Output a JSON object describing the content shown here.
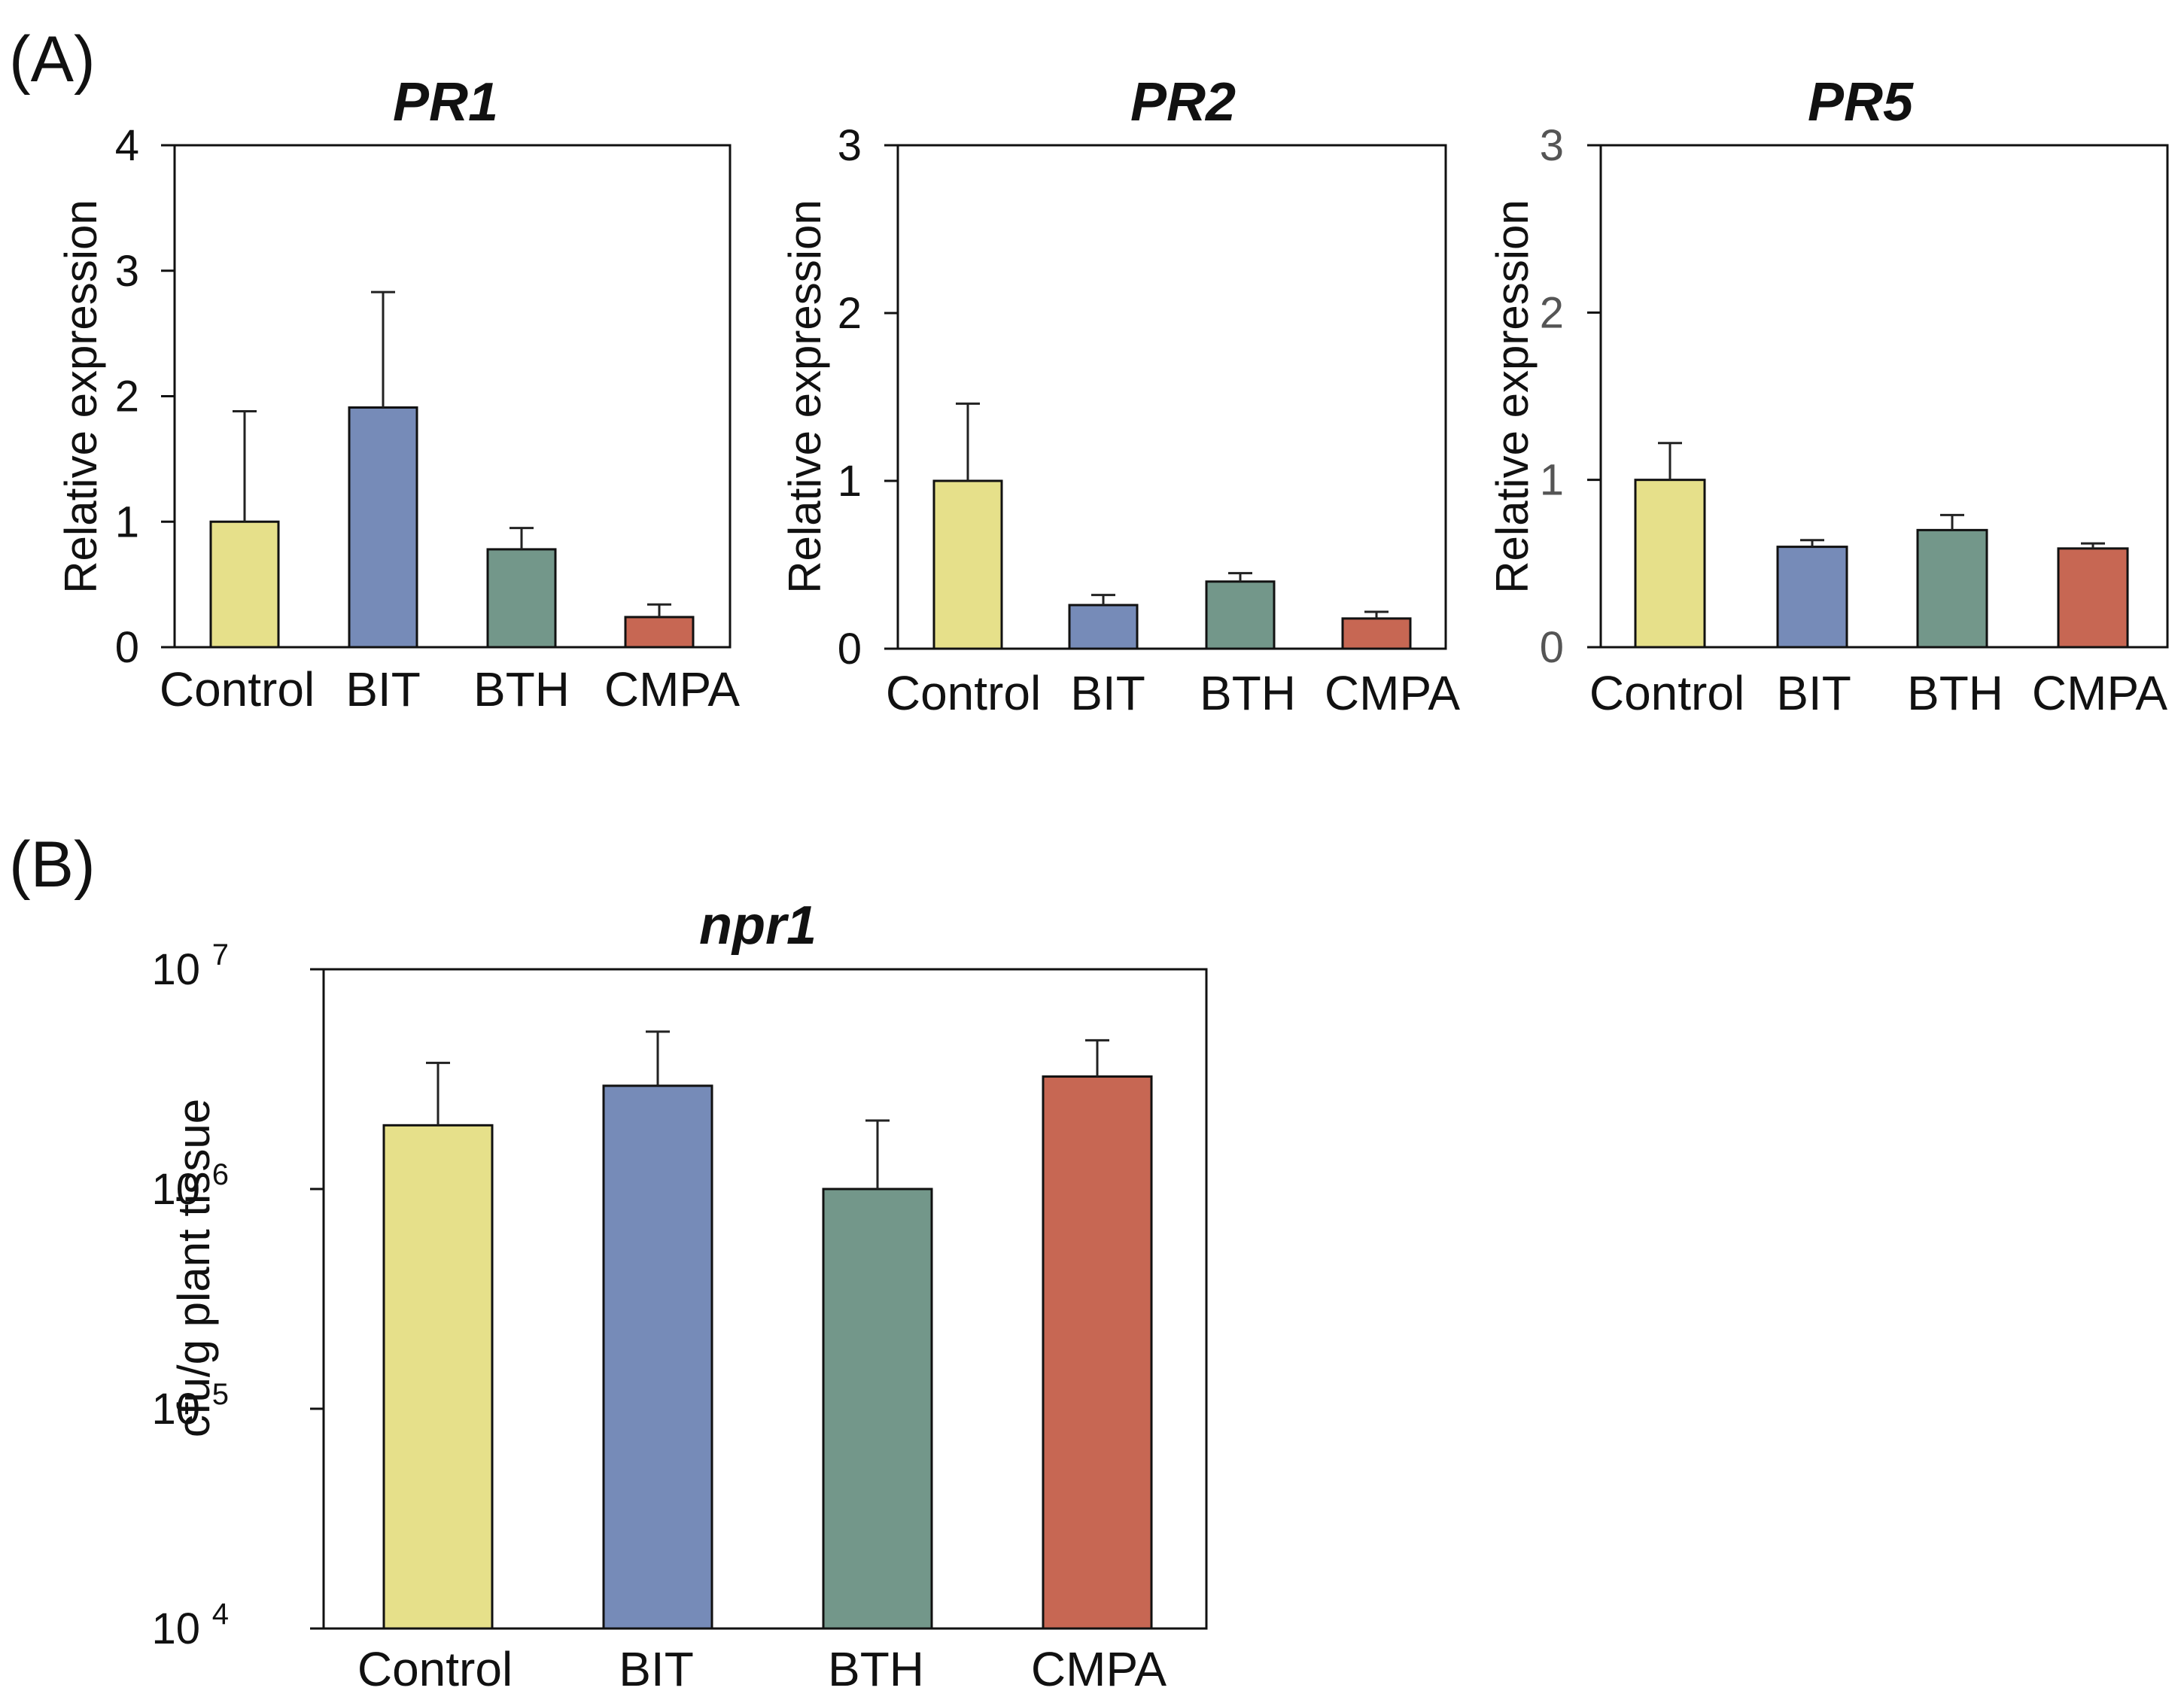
{
  "figure": {
    "panel_a_label": "(A)",
    "panel_b_label": "(B)"
  },
  "colors": {
    "Control": "#e6e08a",
    "BIT": "#768bb8",
    "BTH": "#73978a",
    "CMPA": "#c76753",
    "axis": "#111111",
    "errorbar": "#222222"
  },
  "chart_data": [
    {
      "type": "bar",
      "panel": "A",
      "title": "PR1",
      "xlabel": "",
      "ylabel": "Relative expression",
      "categories": [
        "Control",
        "BIT",
        "BTH",
        "CMPA"
      ],
      "values": [
        1.0,
        1.91,
        0.78,
        0.24
      ],
      "error": [
        0.88,
        0.92,
        0.17,
        0.1
      ],
      "ylim": [
        0,
        4
      ],
      "yticks": [
        "0",
        "1",
        "2",
        "3",
        "4"
      ],
      "ytick_values": [
        0,
        1,
        2,
        3,
        4
      ],
      "scale": "linear",
      "legend": "none"
    },
    {
      "type": "bar",
      "panel": "A",
      "title": "PR2",
      "xlabel": "",
      "ylabel": "Relative expression",
      "categories": [
        "Control",
        "BIT",
        "BTH",
        "CMPA"
      ],
      "values": [
        1.0,
        0.26,
        0.4,
        0.18
      ],
      "error": [
        0.46,
        0.06,
        0.05,
        0.04
      ],
      "ylim": [
        0,
        3
      ],
      "yticks": [
        "0",
        "1",
        "2",
        "3"
      ],
      "ytick_values": [
        0,
        1,
        2,
        3
      ],
      "scale": "linear",
      "legend": "none"
    },
    {
      "type": "bar",
      "panel": "A",
      "title": "PR5",
      "xlabel": "",
      "ylabel": "Relative expression",
      "categories": [
        "Control",
        "BIT",
        "BTH",
        "CMPA"
      ],
      "values": [
        1.0,
        0.6,
        0.7,
        0.59
      ],
      "error": [
        0.22,
        0.04,
        0.09,
        0.03
      ],
      "ylim": [
        0,
        3
      ],
      "yticks": [
        "0",
        "1",
        "2",
        "3"
      ],
      "ytick_values": [
        0,
        1,
        2,
        3
      ],
      "scale": "linear",
      "legend": "none"
    },
    {
      "type": "bar",
      "panel": "B",
      "title": "npr1",
      "xlabel": "",
      "ylabel": "cfu/g plant tissue",
      "categories": [
        "Control",
        "BIT",
        "BTH",
        "CMPA"
      ],
      "values": [
        1950000,
        2950000,
        1000000,
        3250000
      ],
      "error_upper": [
        3750000,
        5200000,
        2050000,
        4750000
      ],
      "ylim": [
        10000,
        10000000
      ],
      "yticks": [
        "10",
        "10",
        "10",
        "10"
      ],
      "ytick_exponents": [
        "4",
        "5",
        "6",
        "7"
      ],
      "ytick_values": [
        10000,
        100000,
        1000000,
        10000000
      ],
      "scale": "log",
      "legend": "none"
    }
  ]
}
